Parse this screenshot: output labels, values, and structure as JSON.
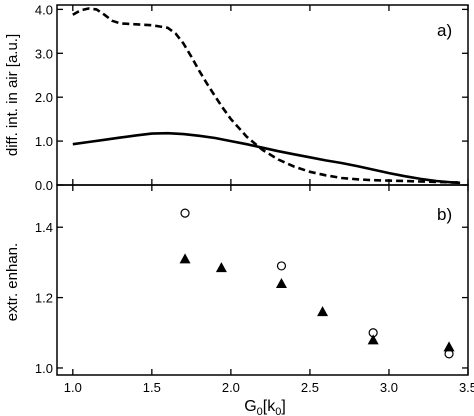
{
  "chart_data": [
    {
      "panel_label": "a)",
      "type": "line",
      "ylabel": "diff. int. in air [a.u.]",
      "xlim": [
        0.9,
        3.5
      ],
      "ylim": [
        0,
        4.1
      ],
      "yticks": [
        0.0,
        1.0,
        2.0,
        3.0,
        4.0
      ],
      "ytick_labels": [
        "0.0",
        "1.0",
        "2.0",
        "3.0",
        "4.0"
      ],
      "series": [
        {
          "style": "solid",
          "x": [
            1.0,
            1.1,
            1.2,
            1.3,
            1.4,
            1.5,
            1.6,
            1.7,
            1.8,
            1.9,
            2.0,
            2.1,
            2.2,
            2.3,
            2.4,
            2.5,
            2.6,
            2.7,
            2.8,
            2.9,
            3.0,
            3.1,
            3.2,
            3.3,
            3.4,
            3.45
          ],
          "y": [
            0.93,
            0.98,
            1.03,
            1.08,
            1.13,
            1.17,
            1.18,
            1.16,
            1.12,
            1.07,
            1.0,
            0.93,
            0.85,
            0.77,
            0.7,
            0.63,
            0.56,
            0.5,
            0.43,
            0.35,
            0.27,
            0.2,
            0.14,
            0.09,
            0.06,
            0.05
          ]
        },
        {
          "style": "dashed",
          "x": [
            1.0,
            1.05,
            1.1,
            1.15,
            1.2,
            1.25,
            1.3,
            1.4,
            1.5,
            1.6,
            1.65,
            1.7,
            1.75,
            1.8,
            1.85,
            1.9,
            1.95,
            2.0,
            2.1,
            2.2,
            2.3,
            2.4,
            2.5,
            2.6,
            2.7,
            2.8,
            2.9,
            3.0,
            3.1,
            3.2,
            3.3,
            3.4,
            3.45
          ],
          "y": [
            3.88,
            3.98,
            4.02,
            4.0,
            3.88,
            3.74,
            3.68,
            3.66,
            3.64,
            3.58,
            3.45,
            3.22,
            2.92,
            2.6,
            2.3,
            2.02,
            1.75,
            1.5,
            1.1,
            0.8,
            0.58,
            0.42,
            0.3,
            0.22,
            0.16,
            0.13,
            0.11,
            0.1,
            0.09,
            0.08,
            0.07,
            0.06,
            0.06
          ]
        }
      ]
    },
    {
      "panel_label": "b)",
      "type": "scatter",
      "ylabel": "extr. enhan.",
      "xlabel_main": "G",
      "xlabel_sub1": "0",
      "xlabel_mid": "[k",
      "xlabel_sub2": "0",
      "xlabel_end": "]",
      "xlim": [
        0.9,
        3.5
      ],
      "ylim": [
        0.98,
        1.52
      ],
      "yticks": [
        1.0,
        1.2,
        1.4
      ],
      "ytick_labels": [
        "1.0",
        "1.2",
        "1.4"
      ],
      "xticks": [
        1.0,
        1.5,
        2.0,
        2.5,
        3.0,
        3.5
      ],
      "xtick_labels": [
        "1.0",
        "1.5",
        "2.0",
        "2.5",
        "3.0",
        "3.5"
      ],
      "series": [
        {
          "marker": "open-circle",
          "x": [
            1.71,
            2.32,
            2.9,
            3.38
          ],
          "y": [
            1.44,
            1.29,
            1.1,
            1.04
          ]
        },
        {
          "marker": "filled-triangle",
          "x": [
            1.71,
            1.94,
            2.32,
            2.58,
            2.9,
            3.38
          ],
          "y": [
            1.31,
            1.285,
            1.24,
            1.16,
            1.08,
            1.06
          ]
        }
      ]
    }
  ]
}
